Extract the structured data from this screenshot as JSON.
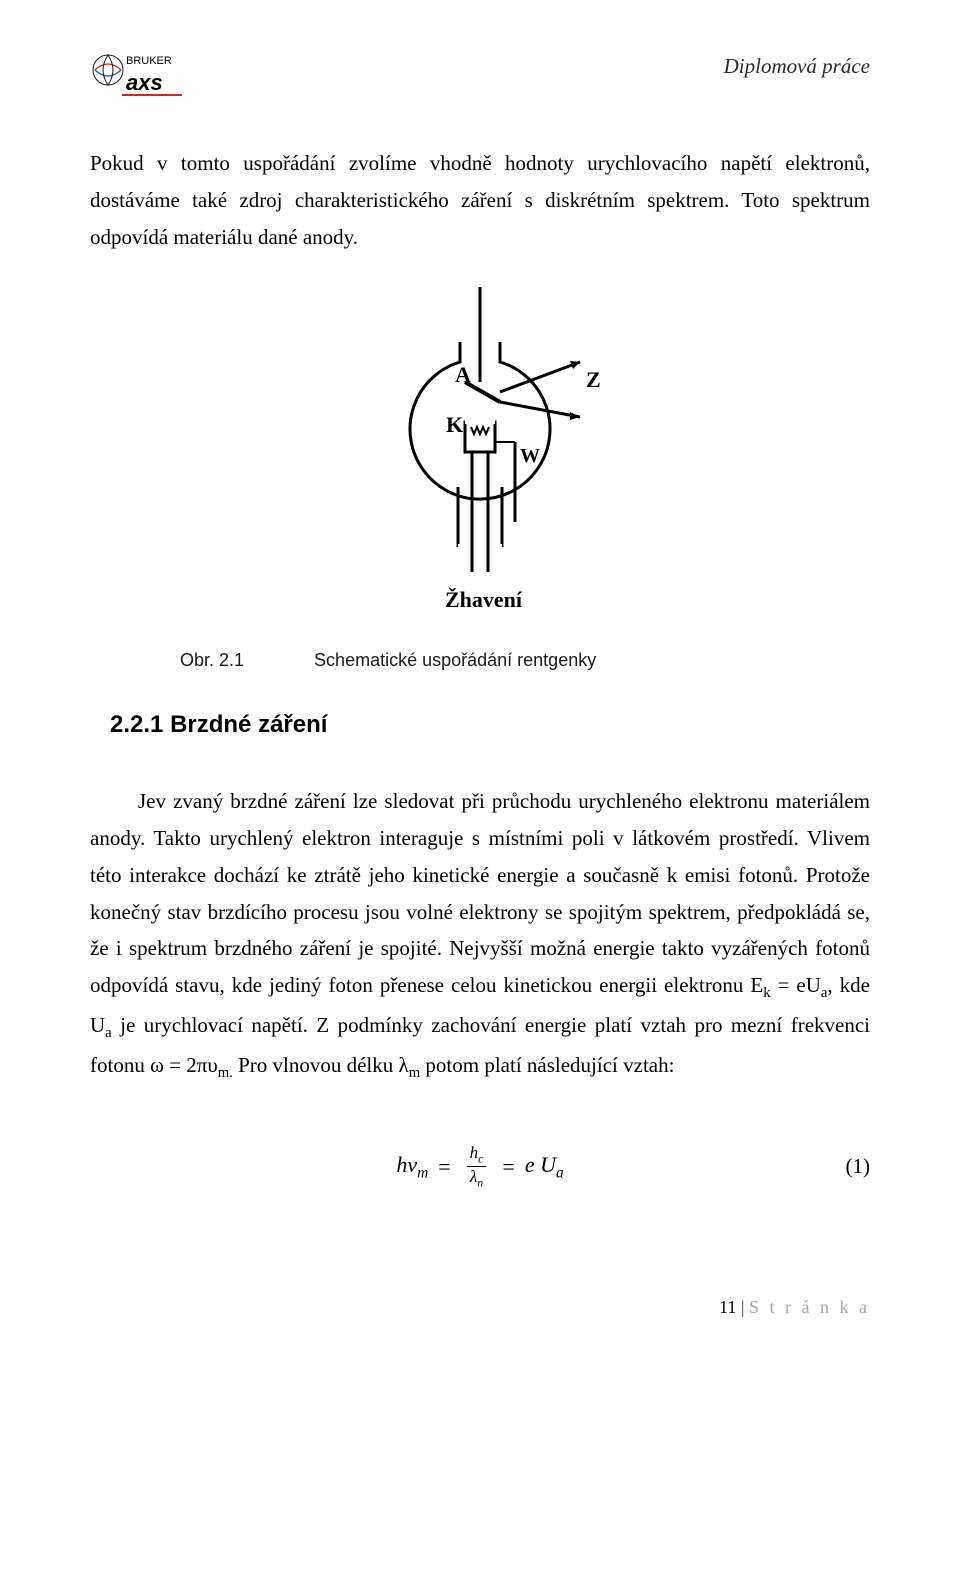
{
  "header": {
    "thesis_label": "Diplomová práce",
    "logo_text_top": "BRUKER",
    "logo_text_bottom": "axs"
  },
  "paragraph1": "Pokud v tomto uspořádání zvolíme vhodně hodnoty urychlovacího napětí elektronů, dostáváme také zdroj charakteristického záření s diskrétním spektrem. Toto spektrum odpovídá materiálu dané anody.",
  "figure": {
    "labels": {
      "A": "A",
      "K": "K",
      "W": "W",
      "Z": "Z",
      "bottom": "Žhavení"
    },
    "stroke": "#000000",
    "fill_bg": "#ffffff"
  },
  "caption": {
    "label": "Obr. 2.1",
    "text": "Schematické uspořádání rentgenky"
  },
  "section": {
    "number": "2.2.1",
    "title": "Brzdné záření"
  },
  "paragraph2_html": "Jev zvaný brzdné záření lze sledovat při průchodu urychleného elektronu materiálem anody. Takto urychlený elektron interaguje s místními poli v látkovém prostředí. Vlivem této interakce dochází ke ztrátě jeho kinetické energie a současně k emisi fotonů. Protože konečný stav brzdícího procesu jsou volné elektrony se spojitým spektrem, předpokládá se, že i spektrum brzdného záření je spojité. Nejvyšší možná energie takto vyzářených fotonů odpovídá stavu, kde jediný foton přenese celou kinetickou energii elektronu E<sub>k</sub> = eU<sub>a</sub>, kde U<sub>a</sub> je urychlovací napětí. Z podmínky zachování energie platí vztah pro mezní frekvenci fotonu ω = 2πυ<sub>m.</sub> Pro vlnovou délku λ<sub>m</sub> potom platí následující vztah:",
  "equation": {
    "lhs": "hv",
    "lhs_sub": "m",
    "frac_num": "h",
    "frac_num_sub": "c",
    "frac_den": "λ",
    "frac_den_sub": "n",
    "rhs": "e U",
    "rhs_sub": "a",
    "number": "(1)"
  },
  "footer": {
    "page_number": "11",
    "page_label": "S t r á n k a",
    "sep": " | "
  },
  "colors": {
    "text": "#000000",
    "header_italic": "#2a2a2a",
    "footer_grey": "#a6a6a6",
    "logo_red": "#d9261c",
    "logo_blue": "#1a5fb4"
  }
}
